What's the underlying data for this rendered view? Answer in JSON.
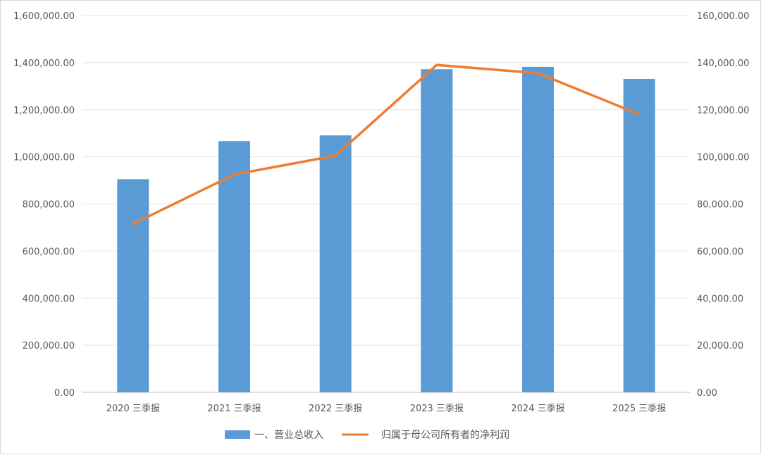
{
  "chart_data": {
    "type": "bar",
    "categories": [
      "2020 三季报",
      "2021 三季报",
      "2022 三季报",
      "2023 三季报",
      "2024 三季报",
      "2025 三季报"
    ],
    "series": [
      {
        "name": "一、营业总收入",
        "type": "bar",
        "axis": "left",
        "color": "#5b9bd5",
        "values": [
          905000,
          1067000,
          1091000,
          1372000,
          1382000,
          1331000
        ]
      },
      {
        "name": "归属于母公司所有者的净利润",
        "type": "line",
        "axis": "right",
        "color": "#ed7d31",
        "values": [
          71500,
          92500,
          100500,
          139000,
          135500,
          118000
        ]
      }
    ],
    "y_left": {
      "min": 0,
      "max": 1600000,
      "step": 200000,
      "tick_labels": [
        "0.00",
        "200,000.00",
        "400,000.00",
        "600,000.00",
        "800,000.00",
        "1,000,000.00",
        "1,200,000.00",
        "1,400,000.00",
        "1,600,000.00"
      ]
    },
    "y_right": {
      "min": 0,
      "max": 160000,
      "step": 20000,
      "tick_labels": [
        "0.00",
        "20,000.00",
        "40,000.00",
        "60,000.00",
        "80,000.00",
        "100,000.00",
        "120,000.00",
        "140,000.00",
        "160,000.00"
      ]
    },
    "grid": true,
    "legend_position": "bottom"
  }
}
